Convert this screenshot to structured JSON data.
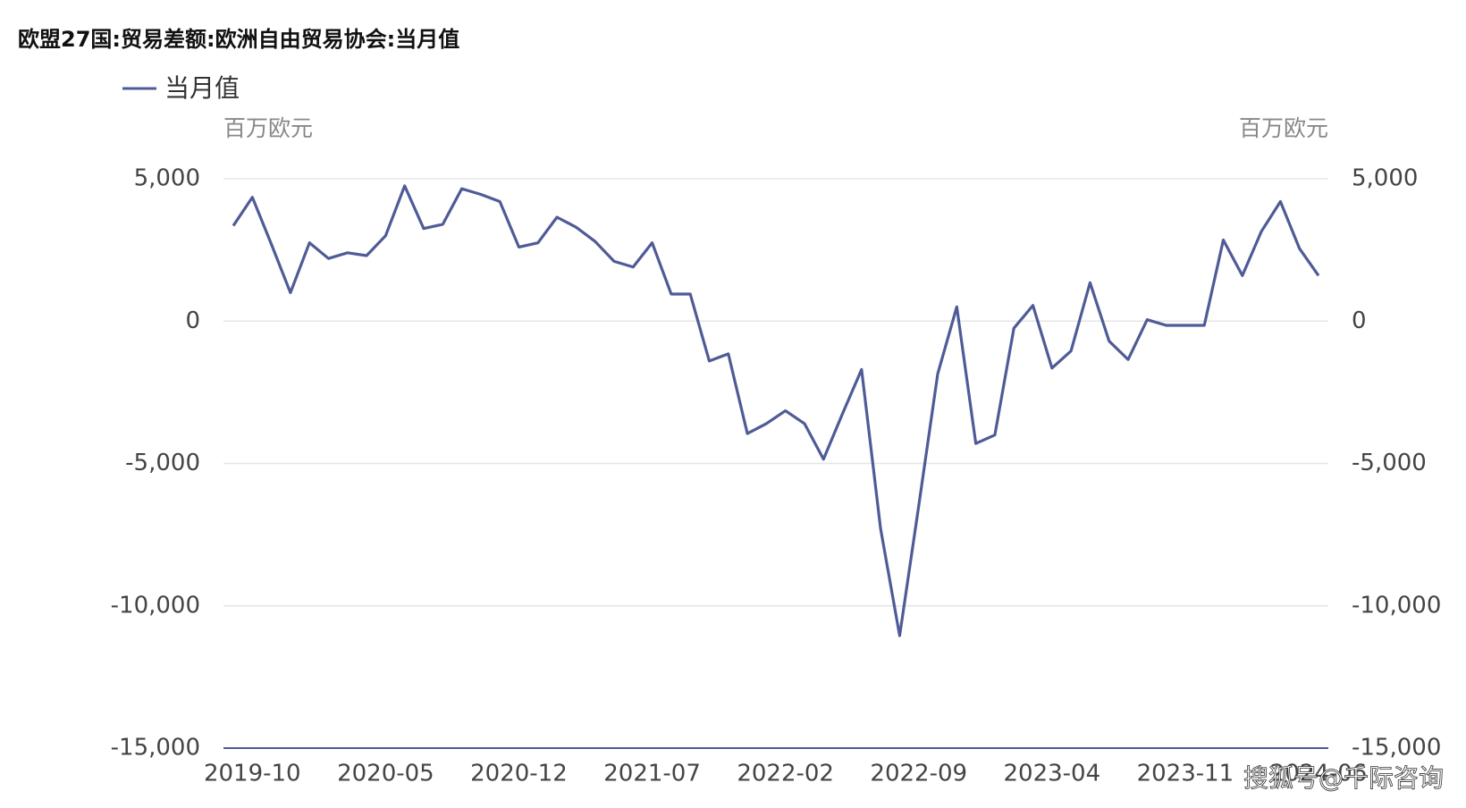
{
  "chart_data": {
    "type": "line",
    "title": "欧盟27国:贸易差额:欧洲自由贸易协会:当月值",
    "y_label": "百万欧元",
    "y2_label": "百万欧元",
    "watermark": "搜狐号@千际咨询",
    "categories": [
      null,
      "2019-10",
      null,
      null,
      null,
      null,
      null,
      null,
      "2020-05",
      null,
      null,
      null,
      null,
      null,
      null,
      "2020-12",
      null,
      null,
      null,
      null,
      null,
      null,
      "2021-07",
      null,
      null,
      null,
      null,
      null,
      null,
      "2022-02",
      null,
      null,
      null,
      null,
      null,
      null,
      "2022-09",
      null,
      null,
      null,
      null,
      null,
      null,
      "2023-04",
      null,
      null,
      null,
      null,
      null,
      null,
      "2023-11",
      null,
      null,
      null,
      null,
      null,
      null,
      "2024-06"
    ],
    "series": [
      {
        "name": "当月值",
        "color": "#4f5b96",
        "values": [
          3350,
          4350,
          2700,
          1000,
          2750,
          2200,
          2400,
          2300,
          3000,
          4750,
          3250,
          3400,
          4650,
          4450,
          4200,
          2600,
          2750,
          3650,
          3300,
          2800,
          2100,
          1900,
          2750,
          950,
          950,
          -1400,
          -1150,
          -3950,
          -3600,
          -3150,
          -3600,
          -4850,
          -3250,
          -1700,
          -7300,
          -11050,
          -6500,
          -1850,
          500,
          -4300,
          -4000,
          -250,
          550,
          -1650,
          -1050,
          1350,
          -700,
          -1350,
          50,
          -150,
          -150,
          -150,
          2850,
          1600,
          3150,
          4200,
          2550,
          1600
        ]
      }
    ],
    "ylim": [
      -15000,
      5000
    ],
    "yticks": [
      {
        "value": 5000,
        "label": "5,000"
      },
      0,
      {
        "value": -5000,
        "label": "-5,000"
      },
      {
        "value": -10000,
        "label": "-10,000"
      },
      {
        "value": -15000,
        "label": "-15,000"
      }
    ],
    "y2lim": [
      -15000,
      5000
    ],
    "y2ticks": [
      {
        "value": 5000,
        "label": "5,000"
      },
      0,
      {
        "value": -5000,
        "label": "-5,000"
      },
      {
        "value": -10000,
        "label": "-10,000"
      },
      {
        "value": -15000,
        "label": "-15,000"
      }
    ],
    "grid": true
  }
}
